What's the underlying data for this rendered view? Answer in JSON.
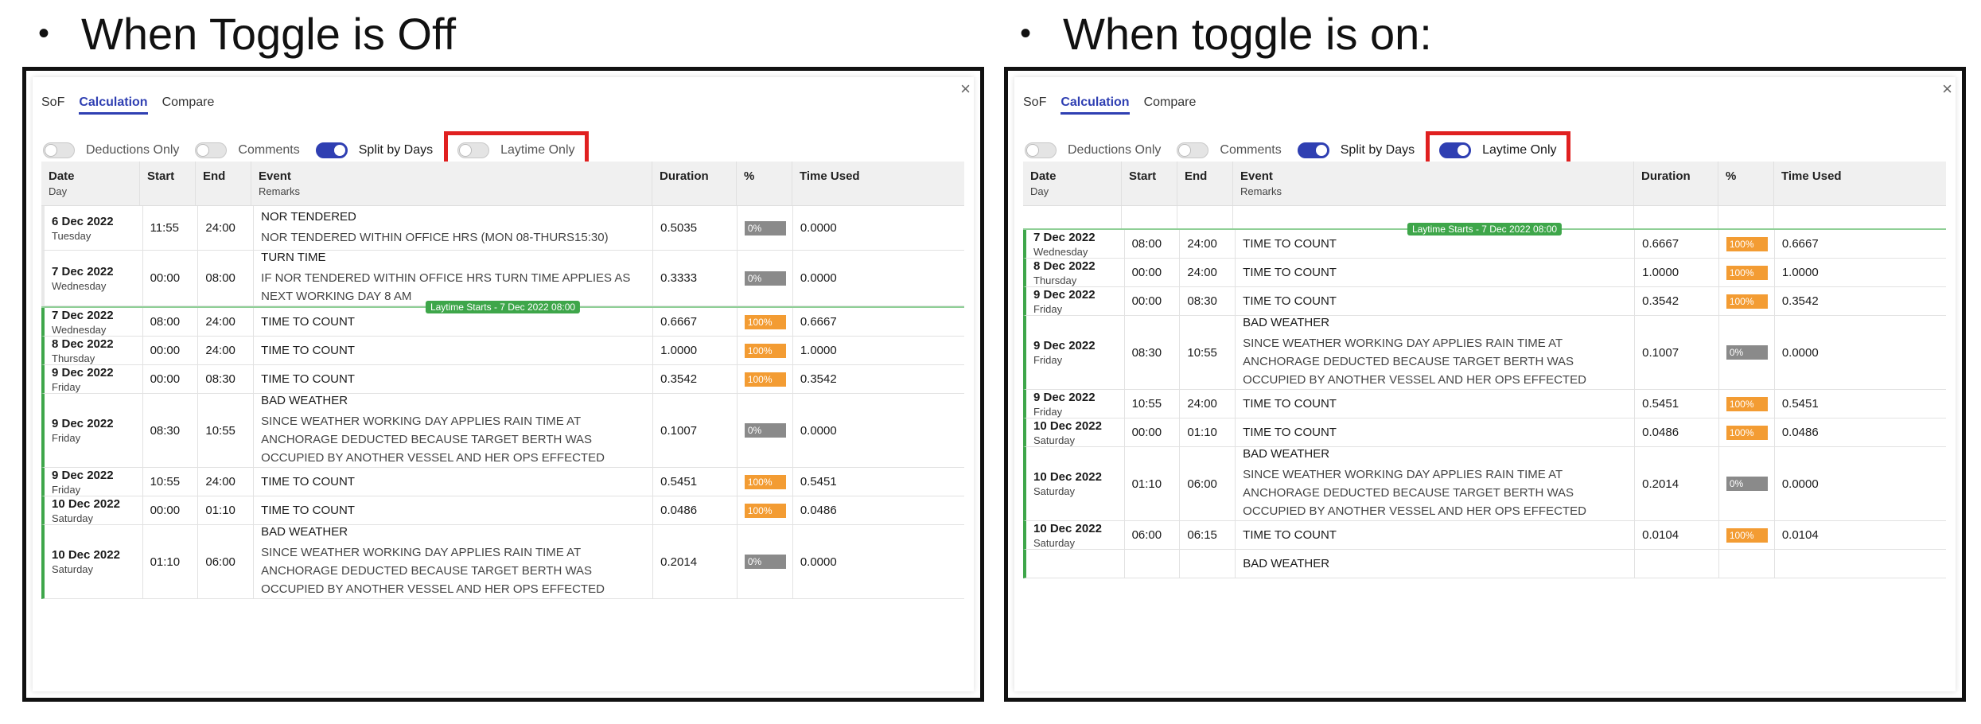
{
  "left_heading": "When Toggle is Off",
  "right_heading": "When toggle is on:",
  "bullet": "•",
  "tabs": [
    "SoF",
    "Calculation",
    "Compare"
  ],
  "toggles": {
    "deductions": "Deductions Only",
    "comments": "Comments",
    "split": "Split by Days",
    "laytime": "Laytime Only"
  },
  "columns": {
    "date": "Date",
    "date_sub": "Day",
    "start": "Start",
    "end": "End",
    "event": "Event",
    "event_sub": "Remarks",
    "duration": "Duration",
    "pct": "%",
    "used": "Time Used"
  },
  "marker": "Laytime Starts - 7 Dec 2022 08:00",
  "close": "×",
  "colors": {
    "accent": "#2f3fb2",
    "laytime_green": "#3ea64a",
    "badge_full": "#f39c33",
    "badge_zero": "#8a8a8a",
    "highlight": "#e02020"
  },
  "left_rows": [
    {
      "date": "6 Dec 2022",
      "day": "Tuesday",
      "start": "11:55",
      "end": "24:00",
      "event": "NOR TENDERED",
      "remark": "NOR TENDERED WITHIN OFFICE HRS (MON 08-THURS15:30)",
      "duration": "0.5035",
      "pct": "0%",
      "used": "0.0000"
    },
    {
      "date": "7 Dec 2022",
      "day": "Wednesday",
      "start": "00:00",
      "end": "08:00",
      "event": "TURN TIME",
      "remark": "IF NOR TENDERED WITHIN OFFICE HRS TURN TIME APPLIES AS NEXT WORKING DAY 8 AM",
      "duration": "0.3333",
      "pct": "0%",
      "used": "0.0000"
    },
    {
      "date": "7 Dec 2022",
      "day": "Wednesday",
      "start": "08:00",
      "end": "24:00",
      "event": "TIME TO COUNT",
      "remark": "",
      "duration": "0.6667",
      "pct": "100%",
      "used": "0.6667"
    },
    {
      "date": "8 Dec 2022",
      "day": "Thursday",
      "start": "00:00",
      "end": "24:00",
      "event": "TIME TO COUNT",
      "remark": "",
      "duration": "1.0000",
      "pct": "100%",
      "used": "1.0000"
    },
    {
      "date": "9 Dec 2022",
      "day": "Friday",
      "start": "00:00",
      "end": "08:30",
      "event": "TIME TO COUNT",
      "remark": "",
      "duration": "0.3542",
      "pct": "100%",
      "used": "0.3542"
    },
    {
      "date": "9 Dec 2022",
      "day": "Friday",
      "start": "08:30",
      "end": "10:55",
      "event": "BAD WEATHER",
      "remark": "SINCE WEATHER WORKING DAY APPLIES RAIN TIME AT ANCHORAGE DEDUCTED BECAUSE TARGET BERTH WAS OCCUPIED BY ANOTHER VESSEL AND HER OPS EFFECTED",
      "duration": "0.1007",
      "pct": "0%",
      "used": "0.0000"
    },
    {
      "date": "9 Dec 2022",
      "day": "Friday",
      "start": "10:55",
      "end": "24:00",
      "event": "TIME TO COUNT",
      "remark": "",
      "duration": "0.5451",
      "pct": "100%",
      "used": "0.5451"
    },
    {
      "date": "10 Dec 2022",
      "day": "Saturday",
      "start": "00:00",
      "end": "01:10",
      "event": "TIME TO COUNT",
      "remark": "",
      "duration": "0.0486",
      "pct": "100%",
      "used": "0.0486"
    },
    {
      "date": "10 Dec 2022",
      "day": "Saturday",
      "start": "01:10",
      "end": "06:00",
      "event": "BAD WEATHER",
      "remark": "SINCE WEATHER WORKING DAY APPLIES RAIN TIME AT ANCHORAGE DEDUCTED BECAUSE TARGET BERTH WAS OCCUPIED BY ANOTHER VESSEL AND HER OPS EFFECTED",
      "duration": "0.2014",
      "pct": "0%",
      "used": "0.0000"
    }
  ],
  "right_rows": [
    {
      "date": "7 Dec 2022",
      "day": "Wednesday",
      "start": "08:00",
      "end": "24:00",
      "event": "TIME TO COUNT",
      "remark": "",
      "duration": "0.6667",
      "pct": "100%",
      "used": "0.6667"
    },
    {
      "date": "8 Dec 2022",
      "day": "Thursday",
      "start": "00:00",
      "end": "24:00",
      "event": "TIME TO COUNT",
      "remark": "",
      "duration": "1.0000",
      "pct": "100%",
      "used": "1.0000"
    },
    {
      "date": "9 Dec 2022",
      "day": "Friday",
      "start": "00:00",
      "end": "08:30",
      "event": "TIME TO COUNT",
      "remark": "",
      "duration": "0.3542",
      "pct": "100%",
      "used": "0.3542"
    },
    {
      "date": "9 Dec 2022",
      "day": "Friday",
      "start": "08:30",
      "end": "10:55",
      "event": "BAD WEATHER",
      "remark": "SINCE WEATHER WORKING DAY APPLIES RAIN TIME AT ANCHORAGE DEDUCTED BECAUSE TARGET BERTH WAS OCCUPIED BY ANOTHER VESSEL AND HER OPS EFFECTED",
      "duration": "0.1007",
      "pct": "0%",
      "used": "0.0000"
    },
    {
      "date": "9 Dec 2022",
      "day": "Friday",
      "start": "10:55",
      "end": "24:00",
      "event": "TIME TO COUNT",
      "remark": "",
      "duration": "0.5451",
      "pct": "100%",
      "used": "0.5451"
    },
    {
      "date": "10 Dec 2022",
      "day": "Saturday",
      "start": "00:00",
      "end": "01:10",
      "event": "TIME TO COUNT",
      "remark": "",
      "duration": "0.0486",
      "pct": "100%",
      "used": "0.0486"
    },
    {
      "date": "10 Dec 2022",
      "day": "Saturday",
      "start": "01:10",
      "end": "06:00",
      "event": "BAD WEATHER",
      "remark": "SINCE WEATHER WORKING DAY APPLIES RAIN TIME AT ANCHORAGE DEDUCTED BECAUSE TARGET BERTH WAS OCCUPIED BY ANOTHER VESSEL AND HER OPS EFFECTED",
      "duration": "0.2014",
      "pct": "0%",
      "used": "0.0000"
    },
    {
      "date": "10 Dec 2022",
      "day": "Saturday",
      "start": "06:00",
      "end": "06:15",
      "event": "TIME TO COUNT",
      "remark": "",
      "duration": "0.0104",
      "pct": "100%",
      "used": "0.0104"
    },
    {
      "date": "",
      "day": "",
      "start": "",
      "end": "",
      "event": "BAD WEATHER",
      "remark": "",
      "duration": "",
      "pct": "",
      "used": ""
    }
  ]
}
